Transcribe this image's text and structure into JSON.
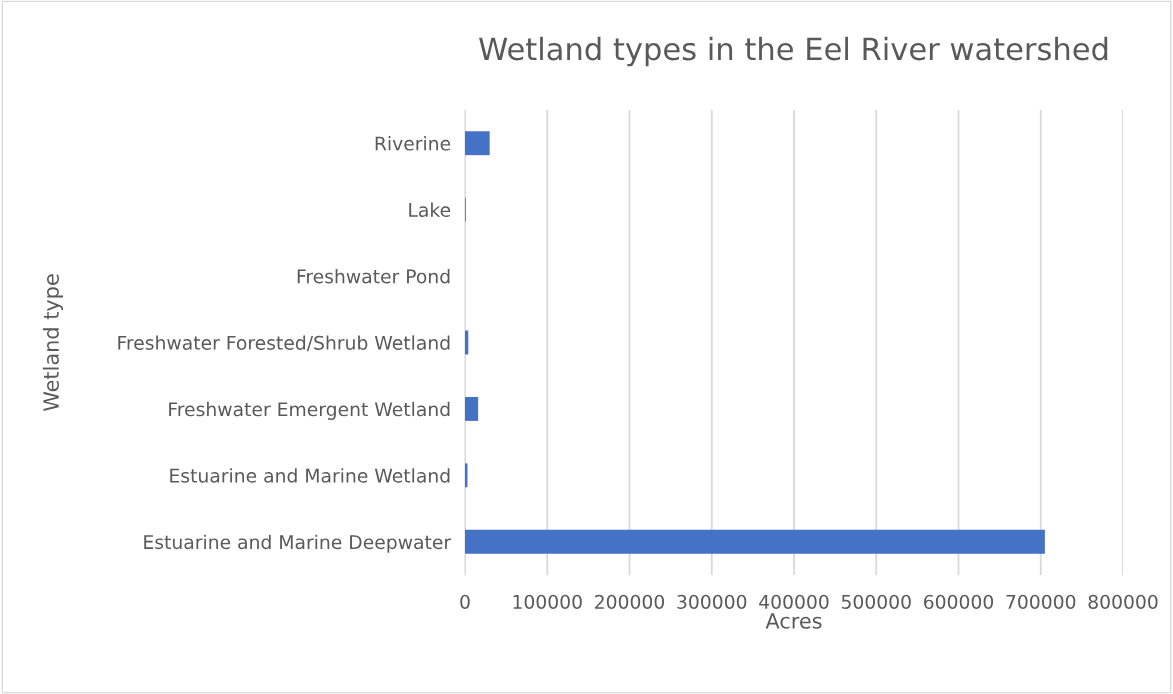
{
  "chart_data": {
    "type": "bar",
    "orientation": "horizontal",
    "title": "Wetland types in the Eel River watershed",
    "xlabel": "Acres",
    "ylabel": "Wetland type",
    "categories": [
      "Riverine",
      "Lake",
      "Freshwater Pond",
      "Freshwater Forested/Shrub Wetland",
      "Freshwater Emergent Wetland",
      "Estuarine and Marine Wetland",
      "Estuarine and Marine Deepwater"
    ],
    "values": [
      30000,
      1000,
      null,
      4000,
      16000,
      3000,
      705000
    ],
    "color": "#4472c4",
    "xlim": [
      0,
      800000
    ],
    "xticks": [
      0,
      100000,
      200000,
      300000,
      400000,
      500000,
      600000,
      700000,
      800000
    ],
    "grid": "x",
    "legend": false
  }
}
